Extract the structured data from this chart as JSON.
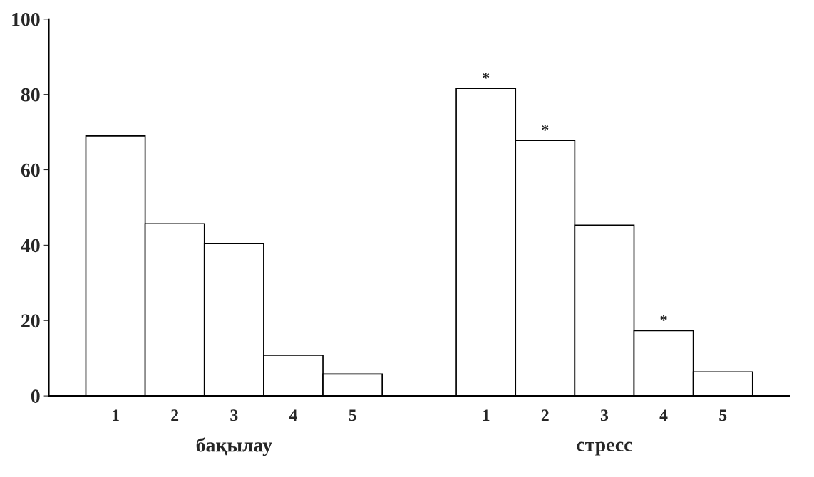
{
  "chart_data": {
    "type": "bar",
    "categories": [
      "бақылау",
      "стресс"
    ],
    "series": [
      {
        "name": "1",
        "color": "#ffffff",
        "values": [
          69,
          81.6
        ],
        "value_labels": [
          null,
          "*"
        ]
      },
      {
        "name": "2",
        "color": "#ffffff",
        "values": [
          45.7,
          67.8
        ],
        "value_labels": [
          null,
          "*"
        ]
      },
      {
        "name": "3",
        "color": "#ffffff",
        "values": [
          40.4,
          45.3
        ]
      },
      {
        "name": "4",
        "color": "#ffffff",
        "values": [
          10.8,
          17.3
        ],
        "value_labels": [
          null,
          "*"
        ]
      },
      {
        "name": "5",
        "color": "#ffffff",
        "values": [
          5.8,
          6.4
        ]
      }
    ],
    "ylim": [
      0,
      100
    ],
    "yticks": [
      0,
      20,
      40,
      60,
      80,
      100
    ],
    "grid": false,
    "legend": false
  }
}
